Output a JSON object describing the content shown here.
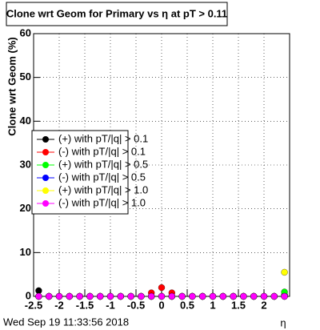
{
  "chart_data": {
    "type": "scatter",
    "title": "Clone wrt Geom for Primary vs   η at pT > 0.11",
    "y_label": "Clone wrt Geom (%)",
    "x_label": "η",
    "footer": "Wed Sep 19 11:33:56 2018",
    "x": [
      -2.4,
      -2.2,
      -2.0,
      -1.8,
      -1.6,
      -1.4,
      -1.2,
      -1.0,
      -0.8,
      -0.6,
      -0.4,
      -0.2,
      0.0,
      0.2,
      0.4,
      0.6,
      0.8,
      1.0,
      1.2,
      1.4,
      1.6,
      1.8,
      2.0,
      2.2,
      2.4
    ],
    "series": [
      {
        "name": "(+) with pT/|q| > 0.1",
        "color": "#000000",
        "values": [
          1.3,
          0,
          0,
          0,
          0,
          0,
          0,
          0,
          0,
          0,
          0,
          0,
          0,
          0,
          0,
          0,
          0,
          0,
          0,
          0,
          0,
          0,
          0,
          0,
          0.3
        ]
      },
      {
        "name": "(-) with pT/|q| > 0.1",
        "color": "#ff0000",
        "values": [
          0,
          0,
          0,
          0,
          0,
          0,
          0,
          0,
          0,
          0,
          0,
          0.8,
          2,
          0.8,
          0,
          0,
          0,
          0,
          0,
          0,
          0,
          0,
          0,
          0,
          0
        ]
      },
      {
        "name": "(+) with pT/|q| > 0.5",
        "color": "#00ff00",
        "values": [
          0,
          0,
          0,
          0,
          0,
          0,
          0,
          0,
          0,
          0,
          0,
          0,
          0,
          0,
          0,
          0,
          0,
          0,
          0,
          0,
          0,
          0,
          0,
          0,
          1
        ]
      },
      {
        "name": "(-) with pT/|q| > 0.5",
        "color": "#0000ff",
        "values": [
          0,
          0,
          0,
          0,
          0,
          0,
          0,
          0,
          0,
          0,
          0,
          0,
          0,
          0,
          0,
          0,
          0,
          0,
          0,
          0,
          0,
          0,
          0,
          0,
          0
        ]
      },
      {
        "name": "(+) with pT/|q| > 1.0",
        "color": "#ffff00",
        "values": [
          0,
          0,
          0,
          0,
          0,
          0,
          0,
          0,
          0,
          0,
          0,
          0,
          0,
          0,
          0,
          0,
          0,
          0,
          0,
          0,
          0,
          0,
          0,
          0,
          5.5
        ]
      },
      {
        "name": "(-) with pT/|q| > 1.0",
        "color": "#ff00ff",
        "values": [
          0,
          0,
          0,
          0,
          0,
          0,
          0,
          0,
          0,
          0,
          0,
          0,
          0,
          0,
          0,
          0,
          0,
          0,
          0,
          0,
          0,
          0,
          0,
          0,
          0
        ]
      }
    ],
    "xlim": [
      -2.5,
      2.5
    ],
    "xticks": [
      -2.5,
      -2,
      -1.5,
      -1,
      -0.5,
      0,
      0.5,
      1,
      1.5,
      2
    ],
    "ylim": [
      0,
      60
    ],
    "yticks": [
      0,
      10,
      20,
      30,
      40,
      50,
      60
    ],
    "grid": true
  }
}
